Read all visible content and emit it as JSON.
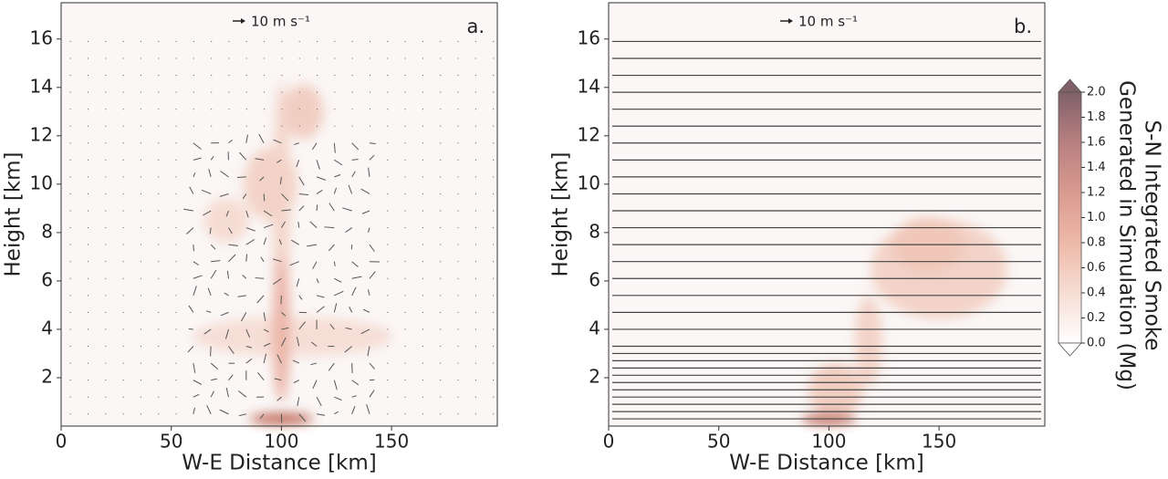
{
  "chart_data": [
    {
      "type": "contour",
      "panel_label": "a.",
      "annotation": "10 m s⁻¹",
      "x_label": "W-E Distance [km]",
      "y_label": "Height [km]",
      "xlim": [
        0,
        198
      ],
      "ylim": [
        0,
        17.5
      ],
      "xticks": [
        0,
        50,
        100,
        150
      ],
      "yticks": [
        2,
        4,
        6,
        8,
        10,
        12,
        14,
        16
      ]
    },
    {
      "type": "contour",
      "panel_label": "b.",
      "annotation": "10 m s⁻¹",
      "x_label": "W-E Distance [km]",
      "y_label": "Height [km]",
      "xlim": [
        0,
        198
      ],
      "ylim": [
        0,
        17.5
      ],
      "xticks": [
        0,
        50,
        100,
        150
      ],
      "yticks": [
        2,
        4,
        6,
        8,
        10,
        12,
        14,
        16
      ],
      "colorbar": {
        "label": [
          "S-N Integrated Smoke",
          "Generated in Simulation (Mg)"
        ],
        "lim": [
          0,
          2
        ],
        "ticks": [
          {
            "value": 0,
            "label": "0.0"
          },
          {
            "value": 0.2,
            "label": "0.2"
          },
          {
            "value": 0.4,
            "label": "0.4"
          },
          {
            "value": 0.6,
            "label": "0.6"
          },
          {
            "value": 0.8,
            "label": "0.8"
          },
          {
            "value": 1,
            "label": "1.0"
          },
          {
            "value": 1.2,
            "label": "1.2"
          },
          {
            "value": 1.4,
            "label": "1.4"
          },
          {
            "value": 1.6,
            "label": "1.6"
          },
          {
            "value": 1.8,
            "label": "1.8"
          },
          {
            "value": 2,
            "label": "2.0"
          }
        ],
        "colors": [
          "#ffffff",
          "#f6ddd4",
          "#eeb9a8",
          "#d99a90",
          "#b88080",
          "#7f6068"
        ]
      }
    }
  ]
}
